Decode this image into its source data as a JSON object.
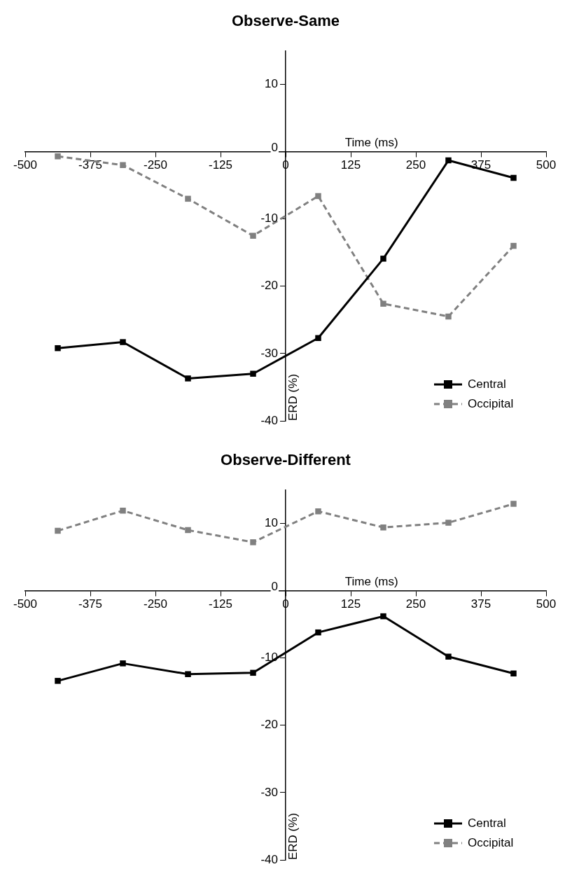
{
  "chart_data": [
    {
      "type": "line",
      "title": "Observe-Same",
      "xlabel": "Time (ms)",
      "ylabel": "ERD (%)",
      "x": [
        -437.5,
        -312.5,
        -187.5,
        -62.5,
        62.5,
        187.5,
        312.5,
        437.5
      ],
      "xlim": [
        -500,
        500
      ],
      "xticks": [
        -500,
        -375,
        -250,
        -125,
        0,
        125,
        250,
        375,
        500
      ],
      "ylim": [
        -40,
        15
      ],
      "yticks": [
        -40,
        -30,
        -20,
        -10,
        0,
        10
      ],
      "grid": false,
      "legend": "bottom right",
      "marker": "square",
      "series": [
        {
          "name": "Central",
          "color": "#000000",
          "line_style": "solid",
          "values": [
            -29.2,
            -28.3,
            -33.7,
            -33.0,
            -27.7,
            -15.9,
            -1.3,
            -3.9
          ]
        },
        {
          "name": "Occipital",
          "color": "#808080",
          "line_style": "dashed",
          "values": [
            -0.7,
            -2.0,
            -7.0,
            -12.5,
            -6.6,
            -22.6,
            -24.5,
            -14.0
          ]
        }
      ]
    },
    {
      "type": "line",
      "title": "Observe-Different",
      "xlabel": "Time (ms)",
      "ylabel": "ERD (%)",
      "x": [
        -437.5,
        -312.5,
        -187.5,
        -62.5,
        62.5,
        187.5,
        312.5,
        437.5
      ],
      "xlim": [
        -500,
        500
      ],
      "xticks": [
        -500,
        -375,
        -250,
        -125,
        0,
        125,
        250,
        375,
        500
      ],
      "ylim": [
        -40,
        15
      ],
      "yticks": [
        -40,
        -30,
        -20,
        -10,
        0,
        10
      ],
      "grid": false,
      "legend": "bottom right",
      "marker": "square",
      "series": [
        {
          "name": "Central",
          "color": "#000000",
          "line_style": "solid",
          "values": [
            -13.4,
            -10.8,
            -12.4,
            -12.2,
            -6.2,
            -3.8,
            -9.8,
            -12.3
          ]
        },
        {
          "name": "Occipital",
          "color": "#808080",
          "line_style": "dashed",
          "values": [
            8.9,
            11.9,
            9.0,
            7.2,
            11.8,
            9.4,
            10.1,
            12.9
          ]
        }
      ]
    }
  ]
}
